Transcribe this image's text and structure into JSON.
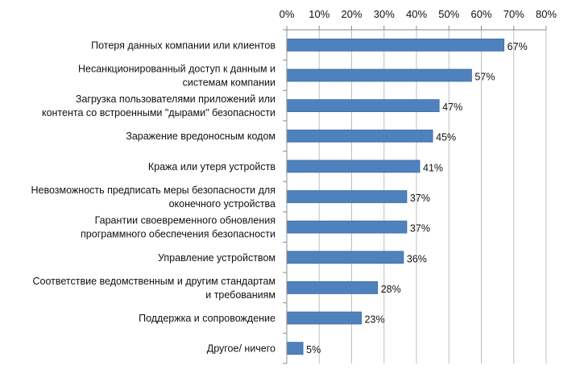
{
  "chart_data": {
    "type": "bar",
    "orientation": "horizontal",
    "categories": [
      [
        "Потеря данных компании или клиентов"
      ],
      [
        "Несанкционированный доступ к данным и",
        "системам компании"
      ],
      [
        "Загрузка пользователями приложений или",
        "контента со встроенными \"дырами\" безопасности"
      ],
      [
        "Заражение вредоносным кодом"
      ],
      [
        "Кража или утеря устройств"
      ],
      [
        "Невозможность предписать меры безопасности для",
        "оконечного устройства"
      ],
      [
        "Гарантии своевременного обновления",
        "программного обеспечения безопасности"
      ],
      [
        "Управление устройством"
      ],
      [
        "Соответствие ведомственным и другим стандартам",
        "и требованиям"
      ],
      [
        "Поддержка и сопровождение"
      ],
      [
        "Другое/ ничего"
      ]
    ],
    "values": [
      67,
      57,
      47,
      45,
      41,
      37,
      37,
      36,
      28,
      23,
      5
    ],
    "data_labels": [
      "67%",
      "57%",
      "47%",
      "45%",
      "41%",
      "37%",
      "37%",
      "36%",
      "28%",
      "23%",
      "5%"
    ],
    "x_ticks": [
      "0%",
      "10%",
      "20%",
      "30%",
      "40%",
      "50%",
      "60%",
      "70%",
      "80%"
    ],
    "xlim": [
      0,
      80
    ],
    "x_axis_position": "top",
    "grid": true,
    "legend": "none",
    "title": "",
    "xlabel": "",
    "ylabel": "",
    "colors": {
      "bar": "#4F81BD",
      "bar_edge": "#3A6AA5",
      "grid": "#BFBFBF",
      "axis": "#8C8C8C"
    }
  }
}
